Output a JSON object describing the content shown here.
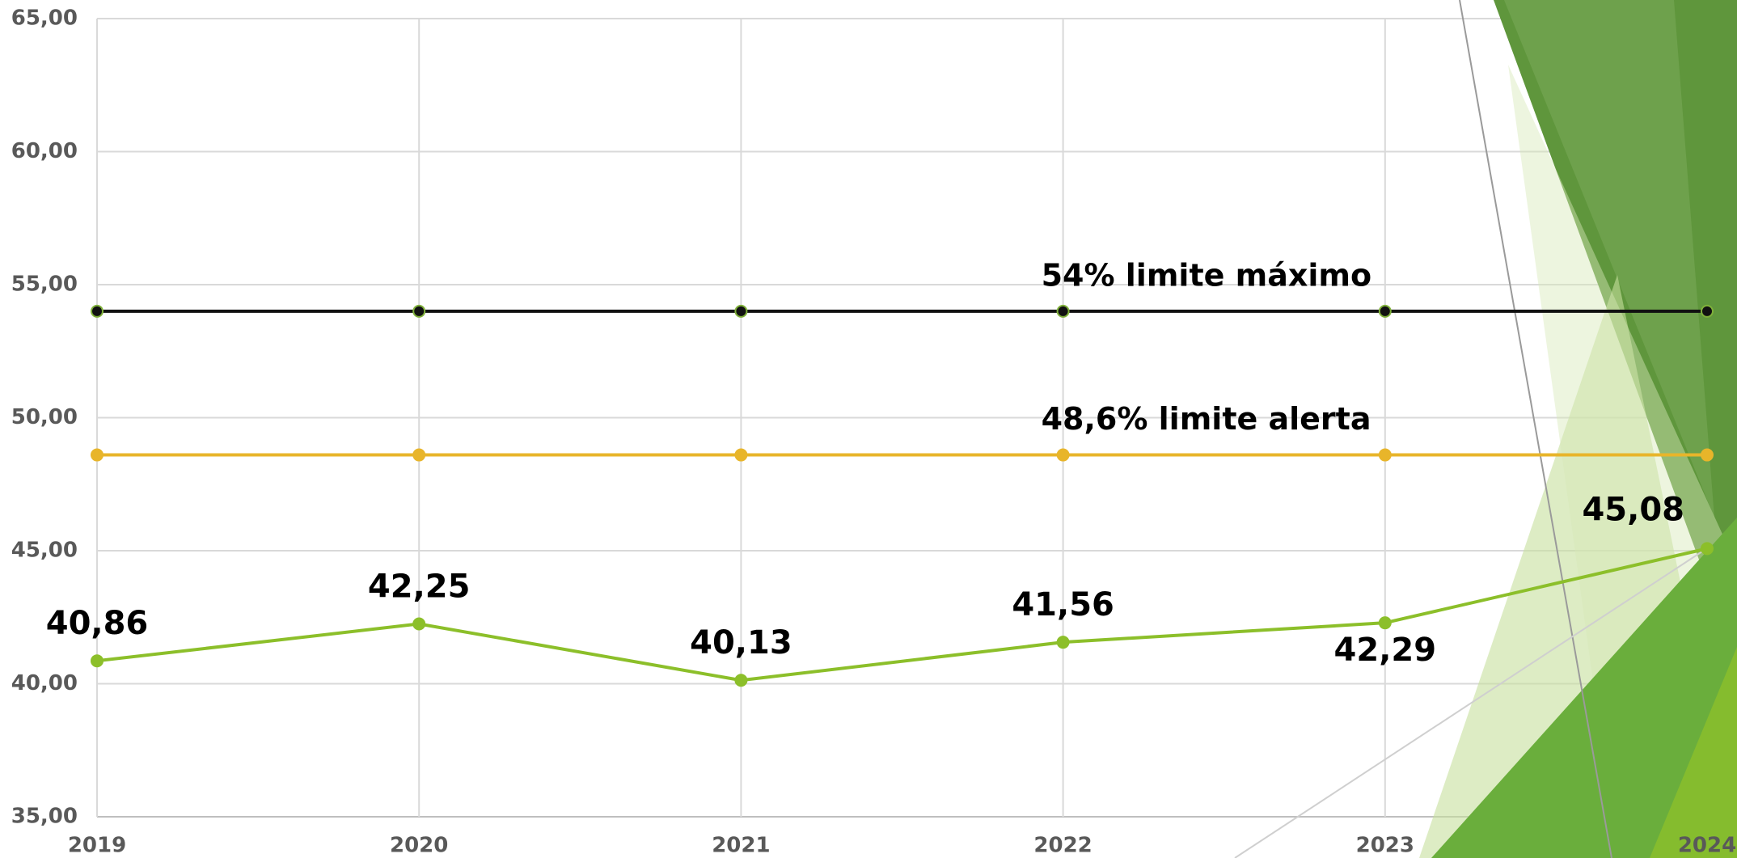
{
  "chart_data": {
    "type": "line",
    "categories": [
      "2019",
      "2020",
      "2021",
      "2022",
      "2023",
      "2024"
    ],
    "series": [
      {
        "color": "#111111",
        "values": [
          54,
          54,
          54,
          54,
          54,
          54
        ]
      },
      {
        "color": "#e8b52a",
        "values": [
          48.6,
          48.6,
          48.6,
          48.6,
          48.6,
          48.6
        ]
      },
      {
        "color": "#8cbf2a",
        "values": [
          40.86,
          42.25,
          40.13,
          41.56,
          42.29,
          45.08
        ],
        "value_labels": [
          "40,86",
          "42,25",
          "40,13",
          "41,56",
          "42,29",
          "45,08"
        ]
      }
    ],
    "annotations": [
      "54% limite máximo",
      "48,6% limite alerta"
    ],
    "ylim": [
      35,
      65
    ],
    "yticks": [
      {
        "value": 35,
        "label": "35,00"
      },
      {
        "value": 40,
        "label": "40,00"
      },
      {
        "value": 45,
        "label": "45,00"
      },
      {
        "value": 50,
        "label": "50,00"
      },
      {
        "value": 55,
        "label": "55,00"
      },
      {
        "value": 60,
        "label": "60,00"
      },
      {
        "value": 65,
        "label": "65,00"
      }
    ],
    "grid": true
  }
}
